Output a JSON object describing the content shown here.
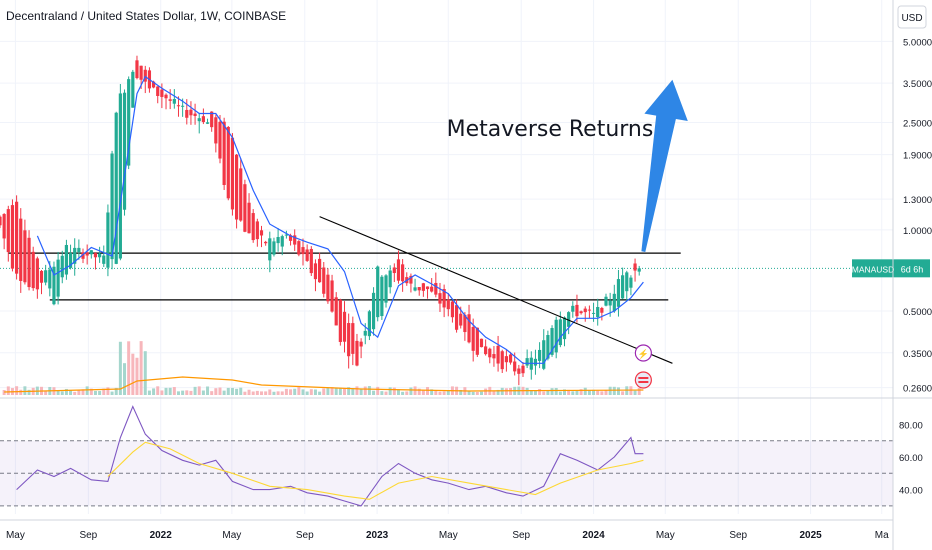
{
  "header": {
    "title": "Decentraland / United States Dollar, 1W, COINBASE"
  },
  "price_axis": {
    "currency_label": "USD",
    "ticks": [
      "5.0000",
      "3.5000",
      "2.5000",
      "1.9000",
      "1.3000",
      "1.0000",
      "0.5000",
      "0.3500",
      "0.2600"
    ],
    "tick_values": [
      5.0,
      3.5,
      2.5,
      1.9,
      1.3,
      1.0,
      0.5,
      0.35,
      0.26
    ],
    "scale": "log"
  },
  "symbol_tag": {
    "symbol": "MANAUSD",
    "countdown": "6d 6h",
    "color": "#22ab94"
  },
  "annotation": {
    "text": "Metaverse Returns"
  },
  "rsi_axis": {
    "ticks": [
      "80.00",
      "60.00",
      "40.00"
    ],
    "tick_values": [
      80,
      60,
      40
    ]
  },
  "time_axis": {
    "labels": [
      "May",
      "Sep",
      "2022",
      "May",
      "Sep",
      "2023",
      "May",
      "Sep",
      "2024",
      "May",
      "Sep",
      "2025",
      "Ma"
    ]
  },
  "colors": {
    "up": "#22ab94",
    "down": "#f23645",
    "ma": "#2962ff",
    "volume_ma": "#ff9800",
    "rsi": "#7e57c2",
    "rsi_ma": "#fdd835",
    "arrow": "#2e86e6",
    "levels": "#000000"
  },
  "chart_data": [
    {
      "type": "candlestick",
      "title": "Decentraland / United States Dollar, 1W, COINBASE",
      "yscale": "log",
      "ylim": [
        0.24,
        6.0
      ],
      "x_start": "2021-04-05",
      "x_end": "2025-05-20",
      "series": [
        {
          "name": "MANAUSD",
          "points": [
            [
              "2021-04-05",
              1.12,
              1.15
            ],
            [
              "2021-05-03",
              1.25,
              0.75
            ],
            [
              "2021-06-07",
              0.78,
              0.58
            ],
            [
              "2021-07-05",
              0.55,
              0.72
            ],
            [
              "2021-08-02",
              0.74,
              0.85
            ],
            [
              "2021-08-30",
              0.85,
              0.82
            ],
            [
              "2021-10-04",
              0.76,
              0.78
            ],
            [
              "2021-10-25",
              0.78,
              2.85
            ],
            [
              "2021-11-22",
              4.2,
              4.0
            ],
            [
              "2021-12-20",
              3.7,
              3.3
            ],
            [
              "2022-01-17",
              3.0,
              3.1
            ],
            [
              "2022-02-14",
              2.8,
              2.75
            ],
            [
              "2022-03-21",
              2.55,
              2.6
            ],
            [
              "2022-04-04",
              2.7,
              2.4
            ],
            [
              "2022-05-02",
              2.2,
              1.3
            ],
            [
              "2022-06-06",
              1.15,
              0.95
            ],
            [
              "2022-07-04",
              0.8,
              0.9
            ],
            [
              "2022-08-08",
              0.95,
              0.95
            ],
            [
              "2022-09-05",
              0.85,
              0.78
            ],
            [
              "2022-10-10",
              0.7,
              0.6
            ],
            [
              "2022-11-07",
              0.5,
              0.4
            ],
            [
              "2022-12-05",
              0.38,
              0.32
            ],
            [
              "2023-01-09",
              0.5,
              0.7
            ],
            [
              "2023-02-06",
              0.78,
              0.68
            ],
            [
              "2023-03-06",
              0.62,
              0.62
            ],
            [
              "2023-04-03",
              0.62,
              0.6
            ],
            [
              "2023-05-01",
              0.57,
              0.52
            ],
            [
              "2023-06-05",
              0.48,
              0.4
            ],
            [
              "2023-07-03",
              0.38,
              0.35
            ],
            [
              "2023-08-07",
              0.34,
              0.32
            ],
            [
              "2023-09-04",
              0.3,
              0.3
            ],
            [
              "2023-10-09",
              0.32,
              0.35
            ],
            [
              "2023-11-06",
              0.38,
              0.48
            ],
            [
              "2023-12-04",
              0.52,
              0.5
            ],
            [
              "2024-01-08",
              0.48,
              0.48
            ],
            [
              "2024-02-05",
              0.52,
              0.56
            ],
            [
              "2024-03-04",
              0.6,
              0.72
            ],
            [
              "2024-03-11",
              0.78,
              0.7
            ],
            [
              "2024-03-18",
              0.7,
              0.72
            ]
          ]
        },
        {
          "name": "MA",
          "points": [
            [
              "2021-06-07",
              0.95
            ],
            [
              "2021-07-05",
              0.68
            ],
            [
              "2021-08-02",
              0.74
            ],
            [
              "2021-09-06",
              0.86
            ],
            [
              "2021-10-11",
              0.8
            ],
            [
              "2021-11-08",
              2.0
            ],
            [
              "2021-11-22",
              3.2
            ],
            [
              "2021-12-06",
              3.7
            ],
            [
              "2022-01-03",
              3.35
            ],
            [
              "2022-02-07",
              3.0
            ],
            [
              "2022-03-07",
              2.7
            ],
            [
              "2022-04-04",
              2.7
            ],
            [
              "2022-05-02",
              2.2
            ],
            [
              "2022-06-06",
              1.4
            ],
            [
              "2022-07-04",
              1.05
            ],
            [
              "2022-08-08",
              0.95
            ],
            [
              "2022-09-05",
              0.9
            ],
            [
              "2022-10-10",
              0.85
            ],
            [
              "2022-11-07",
              0.7
            ],
            [
              "2022-12-05",
              0.45
            ],
            [
              "2023-01-02",
              0.4
            ],
            [
              "2023-02-06",
              0.62
            ],
            [
              "2023-03-06",
              0.68
            ],
            [
              "2023-04-03",
              0.63
            ],
            [
              "2023-05-01",
              0.58
            ],
            [
              "2023-06-05",
              0.46
            ],
            [
              "2023-07-03",
              0.4
            ],
            [
              "2023-08-07",
              0.36
            ],
            [
              "2023-09-04",
              0.32
            ],
            [
              "2023-10-09",
              0.32
            ],
            [
              "2023-11-06",
              0.4
            ],
            [
              "2023-12-04",
              0.47
            ],
            [
              "2024-01-08",
              0.47
            ],
            [
              "2024-02-05",
              0.5
            ],
            [
              "2024-03-04",
              0.56
            ],
            [
              "2024-03-25",
              0.64
            ]
          ]
        }
      ],
      "horizontal_levels": [
        0.82,
        0.55
      ],
      "trendline": [
        [
          "2022-09-26",
          1.12
        ],
        [
          "2024-05-13",
          0.32
        ]
      ],
      "projection_arrow": [
        [
          "2024-03-25",
          0.83
        ],
        [
          "2024-05-13",
          3.6
        ]
      ]
    },
    {
      "type": "line",
      "ylim": [
        25,
        95
      ],
      "bands": [
        30,
        50,
        70
      ],
      "series": [
        {
          "name": "RSI",
          "points": [
            [
              "2021-05-03",
              40
            ],
            [
              "2021-06-07",
              52
            ],
            [
              "2021-07-05",
              48
            ],
            [
              "2021-08-02",
              53
            ],
            [
              "2021-09-06",
              46
            ],
            [
              "2021-10-04",
              45
            ],
            [
              "2021-10-25",
              72
            ],
            [
              "2021-11-15",
              91
            ],
            [
              "2021-12-06",
              74
            ],
            [
              "2022-01-03",
              64
            ],
            [
              "2022-02-07",
              58
            ],
            [
              "2022-03-07",
              55
            ],
            [
              "2022-04-04",
              58
            ],
            [
              "2022-05-02",
              45
            ],
            [
              "2022-06-06",
              40
            ],
            [
              "2022-07-04",
              40
            ],
            [
              "2022-08-08",
              42
            ],
            [
              "2022-09-05",
              38
            ],
            [
              "2022-10-10",
              36
            ],
            [
              "2022-11-07",
              33
            ],
            [
              "2022-12-05",
              30
            ],
            [
              "2023-01-09",
              48
            ],
            [
              "2023-02-06",
              56
            ],
            [
              "2023-03-06",
              50
            ],
            [
              "2023-04-03",
              46
            ],
            [
              "2023-05-01",
              44
            ],
            [
              "2023-06-05",
              40
            ],
            [
              "2023-07-03",
              42
            ],
            [
              "2023-08-07",
              38
            ],
            [
              "2023-09-04",
              36
            ],
            [
              "2023-10-09",
              42
            ],
            [
              "2023-11-06",
              62
            ],
            [
              "2023-12-04",
              58
            ],
            [
              "2024-01-08",
              52
            ],
            [
              "2024-02-05",
              60
            ],
            [
              "2024-03-04",
              72
            ],
            [
              "2024-03-11",
              62
            ],
            [
              "2024-03-25",
              62
            ]
          ]
        },
        {
          "name": "RSI MA",
          "points": [
            [
              "2021-10-04",
              48
            ],
            [
              "2021-11-15",
              63
            ],
            [
              "2021-12-06",
              69
            ],
            [
              "2022-01-17",
              65
            ],
            [
              "2022-03-07",
              56
            ],
            [
              "2022-05-02",
              50
            ],
            [
              "2022-07-04",
              42
            ],
            [
              "2022-09-05",
              40
            ],
            [
              "2022-11-07",
              36
            ],
            [
              "2022-12-19",
              34
            ],
            [
              "2023-02-06",
              44
            ],
            [
              "2023-04-03",
              48
            ],
            [
              "2023-06-05",
              44
            ],
            [
              "2023-08-07",
              40
            ],
            [
              "2023-09-25",
              37
            ],
            [
              "2023-11-06",
              44
            ],
            [
              "2024-01-08",
              52
            ],
            [
              "2024-03-04",
              56
            ],
            [
              "2024-03-25",
              58
            ]
          ]
        }
      ]
    }
  ]
}
